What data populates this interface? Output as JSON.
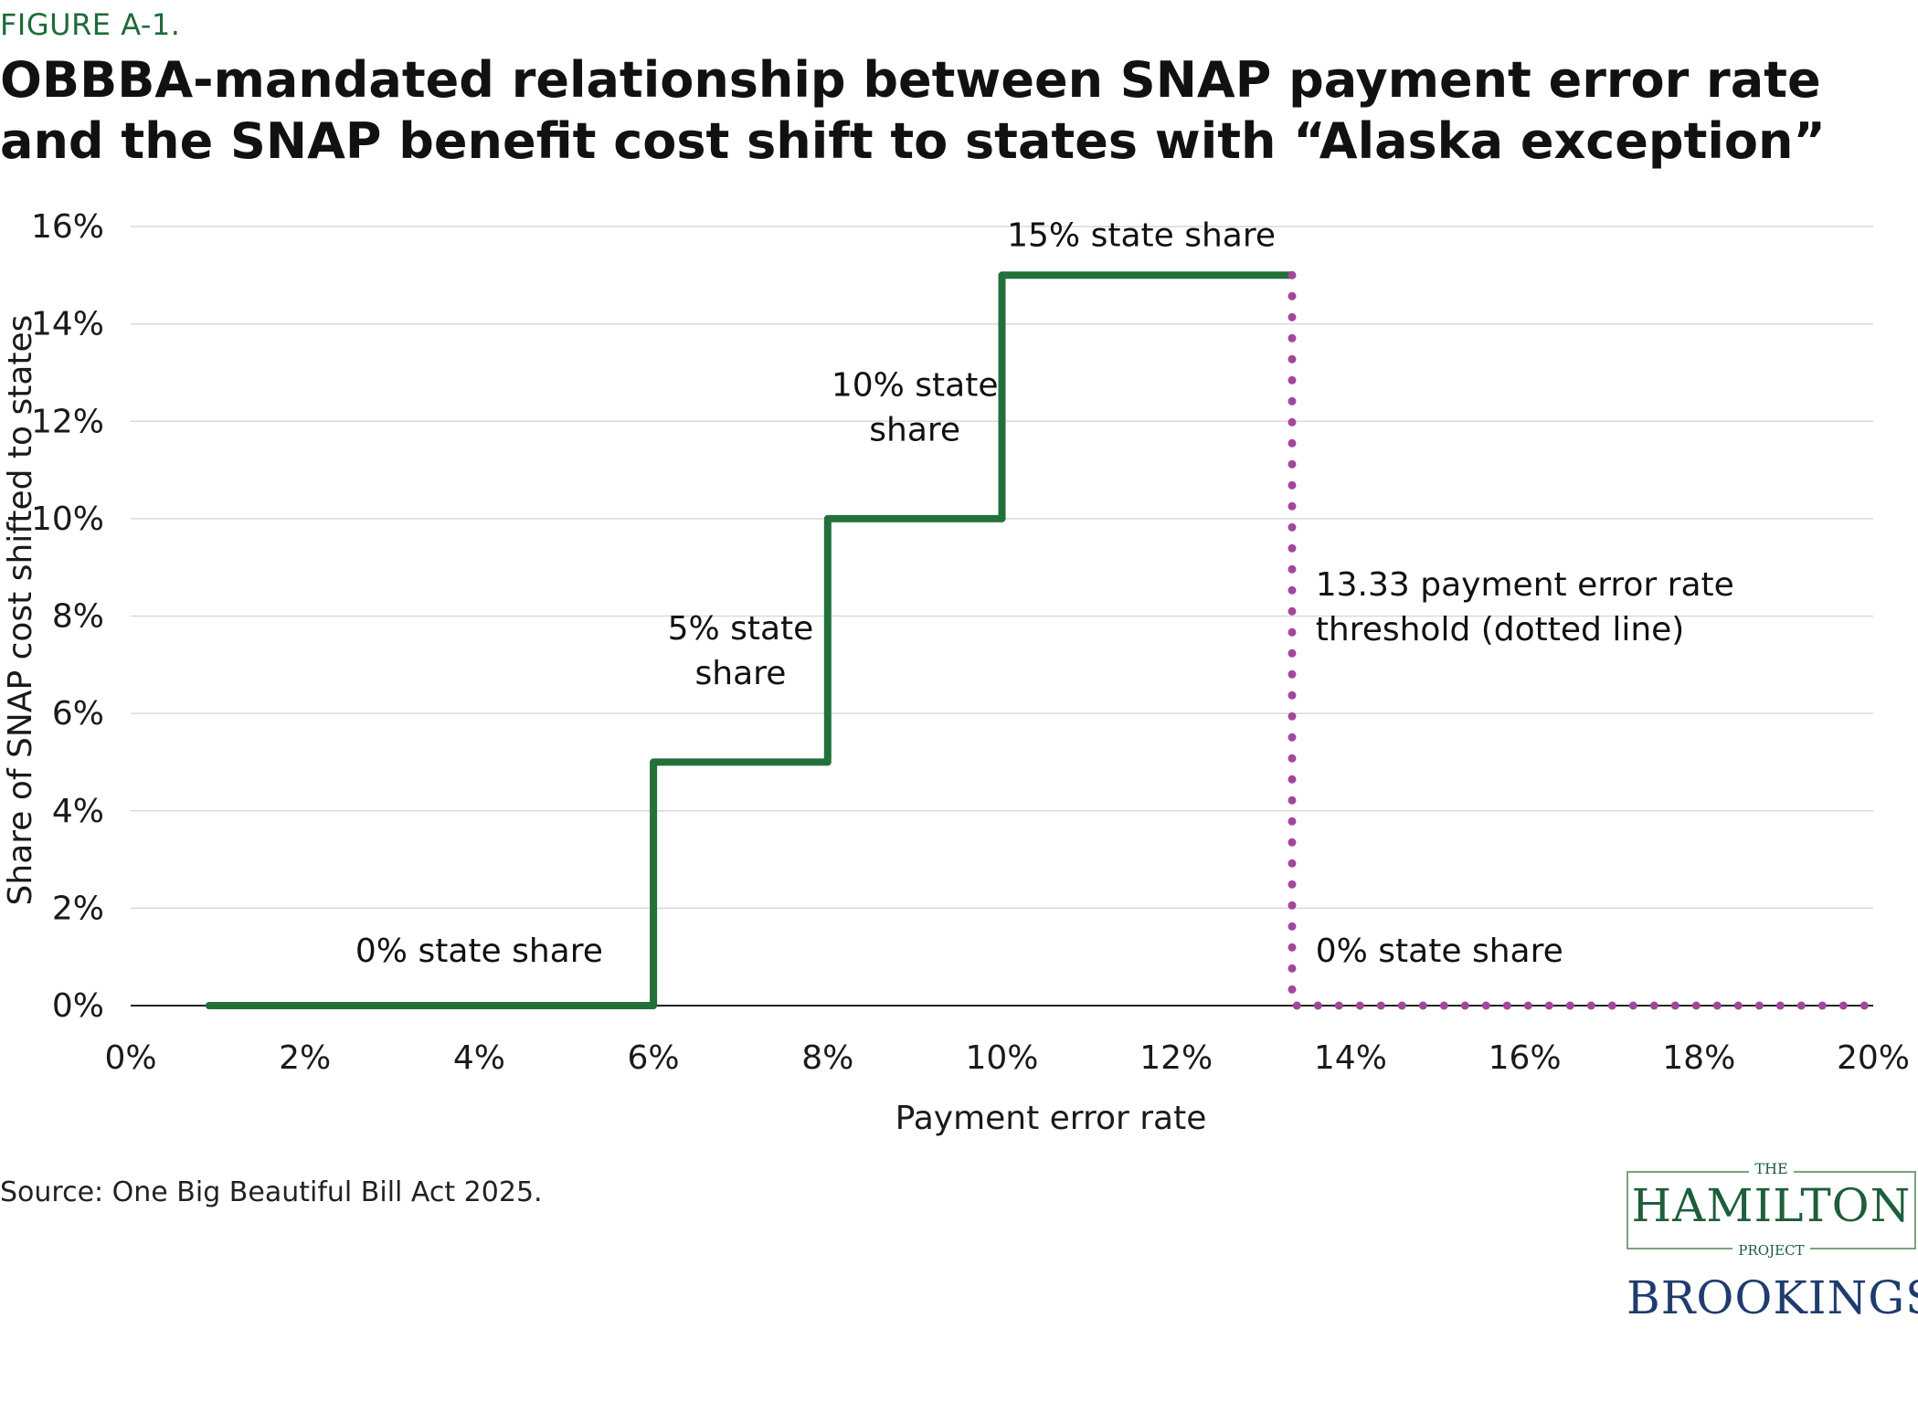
{
  "figure_label": "FIGURE A-1.",
  "title": "OBBBA-mandated relationship between SNAP payment error rate and the SNAP benefit cost shift to states with “Alaska exception”",
  "source": "Source: One Big Beautiful Bill Act 2025.",
  "logos": {
    "hamilton_the": "THE",
    "hamilton_name": "HAMILTON",
    "hamilton_project": "PROJECT",
    "brookings": "BROOKINGS"
  },
  "colors": {
    "step_line": "#23703b",
    "threshold_line": "#a2479b",
    "gridline": "#d9d9d9",
    "axis_line": "#222222"
  },
  "chart_data": {
    "type": "line",
    "title": "OBBBA-mandated relationship between SNAP payment error rate and the SNAP benefit cost shift to states with “Alaska exception”",
    "xlabel": "Payment error rate",
    "ylabel": "Share of SNAP cost shifted to states",
    "xlim": [
      0,
      20
    ],
    "ylim": [
      0,
      16
    ],
    "x_ticks": [
      "0%",
      "2%",
      "4%",
      "6%",
      "8%",
      "10%",
      "12%",
      "14%",
      "16%",
      "18%",
      "20%"
    ],
    "y_ticks": [
      "0%",
      "2%",
      "4%",
      "6%",
      "8%",
      "10%",
      "12%",
      "14%",
      "16%"
    ],
    "grid": true,
    "series": [
      {
        "style": "solid-step",
        "points": [
          [
            0.9,
            0
          ],
          [
            6,
            0
          ],
          [
            6,
            5
          ],
          [
            8,
            5
          ],
          [
            8,
            10
          ],
          [
            10,
            10
          ],
          [
            10,
            15
          ],
          [
            13.33,
            15
          ]
        ]
      },
      {
        "style": "dotted",
        "points": [
          [
            13.33,
            15
          ],
          [
            13.33,
            0
          ],
          [
            20,
            0
          ]
        ]
      }
    ],
    "annotations": [
      {
        "lines": [
          "0% state share"
        ],
        "x": 4,
        "y": 0.9
      },
      {
        "lines": [
          "5% state",
          "share"
        ],
        "x": 7,
        "y": 6.6
      },
      {
        "lines": [
          "10% state",
          "share"
        ],
        "x": 9,
        "y": 11.6
      },
      {
        "lines": [
          "15% state share"
        ],
        "x": 11.6,
        "y": 15.6
      },
      {
        "lines": [
          "13.33 payment error rate",
          "threshold (dotted line)"
        ],
        "x": 13.6,
        "y": 7.5,
        "align": "start"
      },
      {
        "lines": [
          "0% state share"
        ],
        "x": 13.6,
        "y": 0.9,
        "align": "start"
      }
    ]
  }
}
